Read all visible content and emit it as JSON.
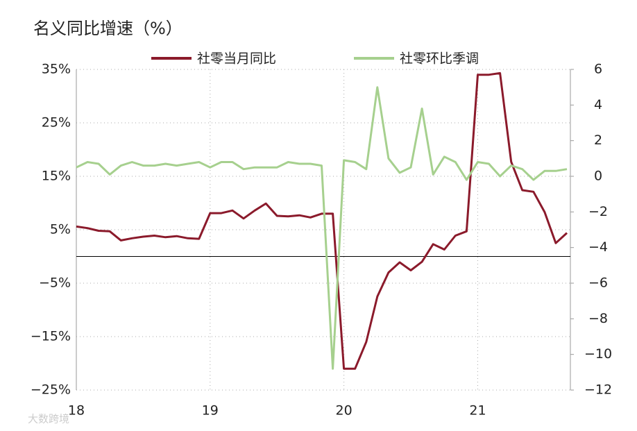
{
  "chart_data": {
    "type": "line",
    "title": "名义同比增速（%）",
    "watermark": "大数跨境",
    "categories": [
      "18",
      null,
      null,
      null,
      null,
      null,
      null,
      null,
      null,
      null,
      null,
      null,
      "19",
      null,
      null,
      null,
      null,
      null,
      null,
      null,
      null,
      null,
      null,
      null,
      "20",
      null,
      null,
      null,
      null,
      null,
      null,
      null,
      null,
      null,
      null,
      null,
      "21",
      null,
      null,
      null,
      null,
      null,
      null,
      null,
      null
    ],
    "ylim": [
      -25,
      35
    ],
    "yticks": [
      {
        "value": -25,
        "label": "−25%"
      },
      {
        "value": -15,
        "label": "−15%"
      },
      {
        "value": -5,
        "label": "−5%"
      },
      {
        "value": 5,
        "label": "5%"
      },
      {
        "value": 15,
        "label": "15%"
      },
      {
        "value": 25,
        "label": "25%"
      },
      {
        "value": 35,
        "label": "35%"
      }
    ],
    "y2lim": [
      -12,
      6
    ],
    "y2ticks": [
      {
        "value": -12,
        "label": "−12"
      },
      {
        "value": -10,
        "label": "−10"
      },
      {
        "value": -8,
        "label": "−8"
      },
      {
        "value": -6,
        "label": "−6"
      },
      {
        "value": -4,
        "label": "−4"
      },
      {
        "value": -2,
        "label": "−2"
      },
      0,
      2,
      4,
      6
    ],
    "grid": true,
    "legend": "top",
    "series": [
      {
        "name": "社零当月同比",
        "color": "#8b1a2b",
        "axis": "y",
        "values": [
          5.6,
          5.3,
          4.8,
          4.7,
          3.0,
          3.4,
          3.7,
          3.9,
          3.6,
          3.8,
          3.4,
          3.3,
          8.1,
          8.1,
          8.6,
          7.1,
          8.6,
          9.9,
          7.6,
          7.5,
          7.7,
          7.3,
          8.0,
          8.0,
          -21,
          -21,
          -16,
          -7.5,
          -3,
          -1.1,
          -2.6,
          -1.0,
          2.3,
          1.3,
          3.9,
          4.7,
          34,
          34,
          34.3,
          17.7,
          12.4,
          12.1,
          8.3,
          2.5,
          4.4
        ]
      },
      {
        "name": "社零环比季调",
        "color": "#a6d08e",
        "axis": "y2",
        "values": [
          0.5,
          0.8,
          0.7,
          0.1,
          0.6,
          0.8,
          0.6,
          0.6,
          0.7,
          0.6,
          0.7,
          0.8,
          0.5,
          0.8,
          0.8,
          0.4,
          0.5,
          0.5,
          0.5,
          0.8,
          0.7,
          0.7,
          0.6,
          -10.8,
          0.9,
          0.8,
          0.4,
          5.0,
          1.0,
          0.2,
          0.5,
          3.8,
          0.1,
          1.1,
          0.8,
          -0.2,
          0.8,
          0.7,
          0.0,
          0.6,
          0.4,
          -0.2,
          0.3,
          0.3,
          0.4
        ]
      }
    ]
  }
}
